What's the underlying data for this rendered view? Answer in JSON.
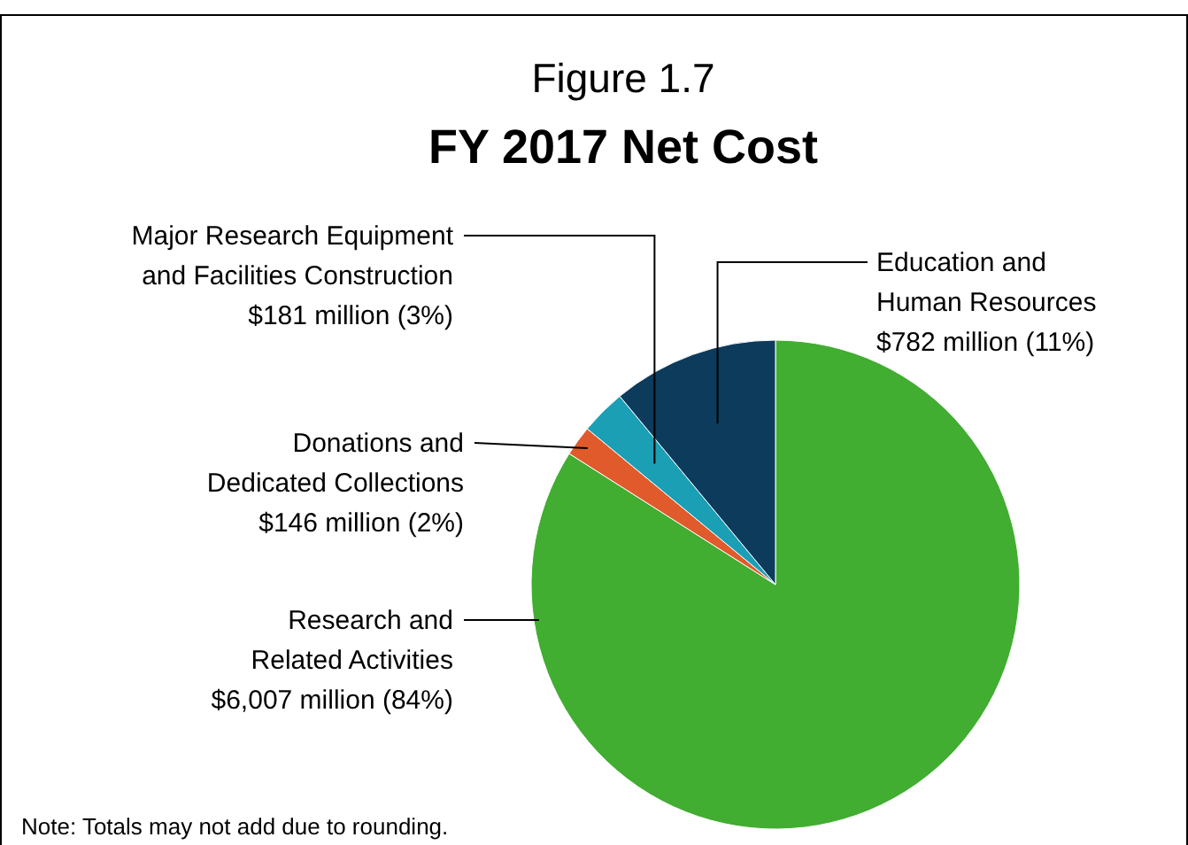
{
  "chart_data": {
    "type": "pie",
    "title": "Figure 1.7",
    "subtitle": "FY 2017 Net Cost",
    "categories": [
      "Research and\nRelated Activities",
      "Donations and\nDedicated Collections",
      "Major Research Equipment\nand Facilities Construction",
      "Education and\nHuman Resources"
    ],
    "values": [
      84,
      2,
      3,
      11
    ],
    "value_labels": [
      "$6,007 million (84%)",
      "$146 million (2%)",
      "$181 million (3%)",
      "$782 million (11%)"
    ],
    "colors": [
      "#41ad31",
      "#e05a2b",
      "#1a9fb5",
      "#0d3b5c"
    ],
    "annotations": [
      "Note: Totals may not add due to rounding."
    ]
  }
}
